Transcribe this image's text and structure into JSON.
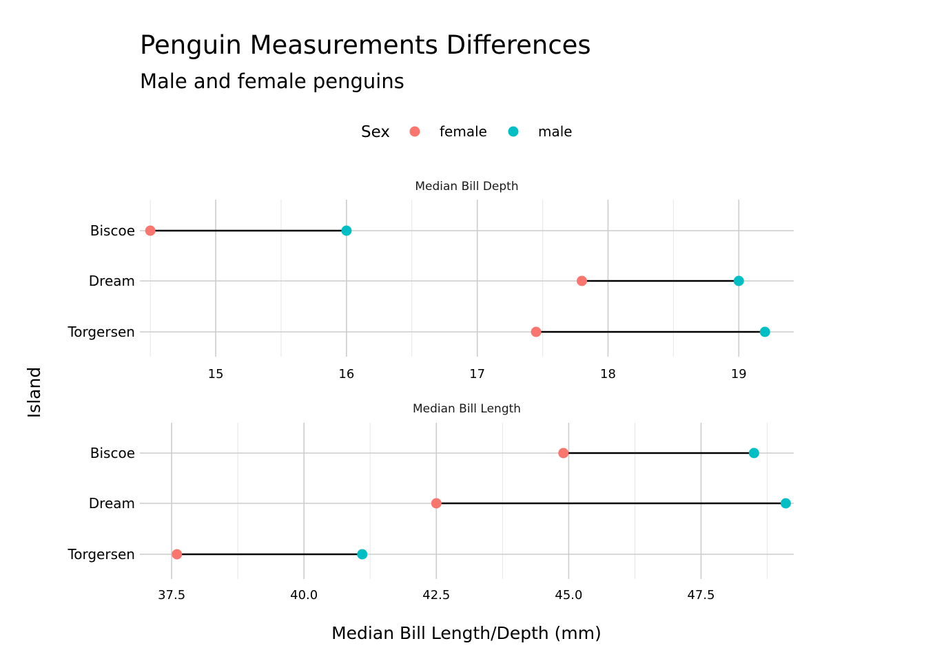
{
  "chart_data": {
    "type": "dumbbell",
    "title": "Penguin Measurements Differences",
    "subtitle": "Male and female penguins",
    "xlabel": "Median Bill Length/Depth (mm)",
    "ylabel": "Island",
    "legend": {
      "title": "Sex",
      "position": "top",
      "entries": [
        {
          "name": "female",
          "color": "#F8766D"
        },
        {
          "name": "male",
          "color": "#00BFC4"
        }
      ]
    },
    "grid": true,
    "categories": [
      "Biscoe",
      "Dream",
      "Torgersen"
    ],
    "panels": [
      {
        "strip": "Median Bill Depth",
        "xlim": [
          14.42,
          19.42
        ],
        "xticks": [
          15,
          16,
          17,
          18,
          19
        ],
        "xtick_labels": [
          "15",
          "16",
          "17",
          "18",
          "19"
        ],
        "minor_ticks": [
          14.5,
          15.5,
          16.5,
          17.5,
          18.5
        ],
        "series": [
          {
            "name": "female",
            "values": [
              14.5,
              17.8,
              17.45
            ]
          },
          {
            "name": "male",
            "values": [
              16.0,
              19.0,
              19.2
            ]
          }
        ]
      },
      {
        "strip": "Median Bill Length",
        "xlim": [
          36.9,
          49.25
        ],
        "xticks": [
          37.5,
          40.0,
          42.5,
          45.0,
          47.5
        ],
        "xtick_labels": [
          "37.5",
          "40.0",
          "42.5",
          "45.0",
          "47.5"
        ],
        "minor_ticks": [
          38.75,
          41.25,
          43.75,
          46.25,
          48.75
        ],
        "series": [
          {
            "name": "female",
            "values": [
              44.9,
              42.5,
              37.6
            ]
          },
          {
            "name": "male",
            "values": [
              48.5,
              49.1,
              41.1
            ]
          }
        ]
      }
    ]
  }
}
